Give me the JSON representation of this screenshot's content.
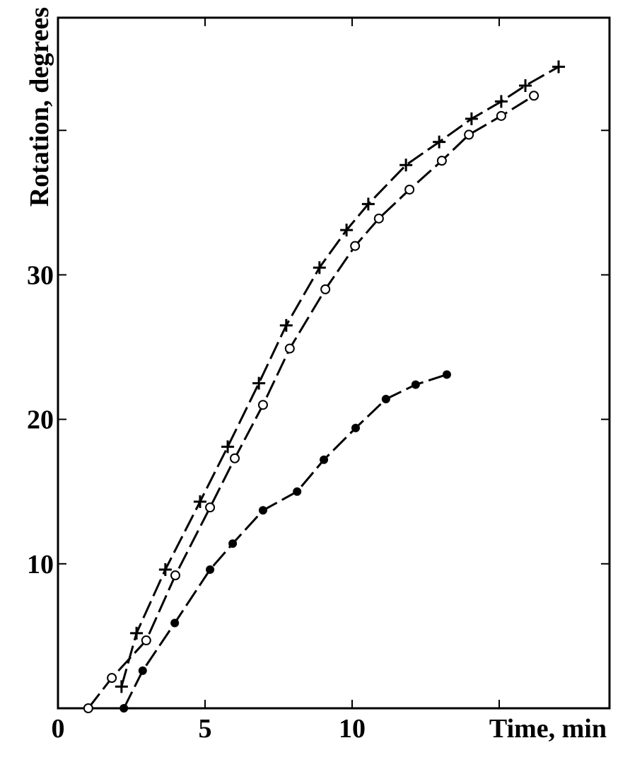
{
  "chart_data": {
    "type": "line",
    "xlabel": "Time, min",
    "ylabel": "Rotation, degrees",
    "xlim": [
      0,
      18.75
    ],
    "ylim": [
      0,
      47.8
    ],
    "xticks": [
      0,
      5,
      10,
      {
        "value": 15,
        "label": null
      }
    ],
    "yticks": [
      10,
      20,
      30,
      {
        "value": 40,
        "label": null
      }
    ],
    "grid": false,
    "series": [
      {
        "marker": "plus",
        "color": "#000000",
        "x": [
          2.16,
          2.67,
          3.65,
          4.83,
          5.77,
          6.83,
          7.76,
          8.89,
          9.81,
          10.55,
          11.83,
          12.96,
          14.06,
          15.07,
          15.89,
          17.02
        ],
        "values": [
          1.5,
          5.2,
          9.6,
          14.3,
          18.1,
          22.5,
          26.5,
          30.5,
          33.1,
          34.9,
          37.6,
          39.2,
          40.8,
          42.0,
          43.1,
          44.4
        ]
      },
      {
        "marker": "open-circle",
        "color": "#000000",
        "x": [
          1.03,
          1.83,
          3.0,
          3.99,
          5.17,
          6.01,
          6.97,
          7.88,
          9.09,
          10.1,
          10.91,
          11.95,
          13.05,
          13.97,
          15.07,
          16.18
        ],
        "values": [
          0,
          2.1,
          4.7,
          9.2,
          13.9,
          17.3,
          21.0,
          24.9,
          29.0,
          32.0,
          33.9,
          35.9,
          37.9,
          39.7,
          41.0,
          42.4
        ]
      },
      {
        "marker": "filled-circle",
        "color": "#000000",
        "x": [
          2.24,
          2.88,
          3.97,
          5.17,
          5.94,
          6.97,
          8.13,
          9.04,
          10.12,
          11.15,
          12.16,
          13.22
        ],
        "values": [
          0,
          2.6,
          5.9,
          9.6,
          11.4,
          13.7,
          15.0,
          17.2,
          19.4,
          21.4,
          22.4,
          23.1
        ]
      }
    ]
  }
}
